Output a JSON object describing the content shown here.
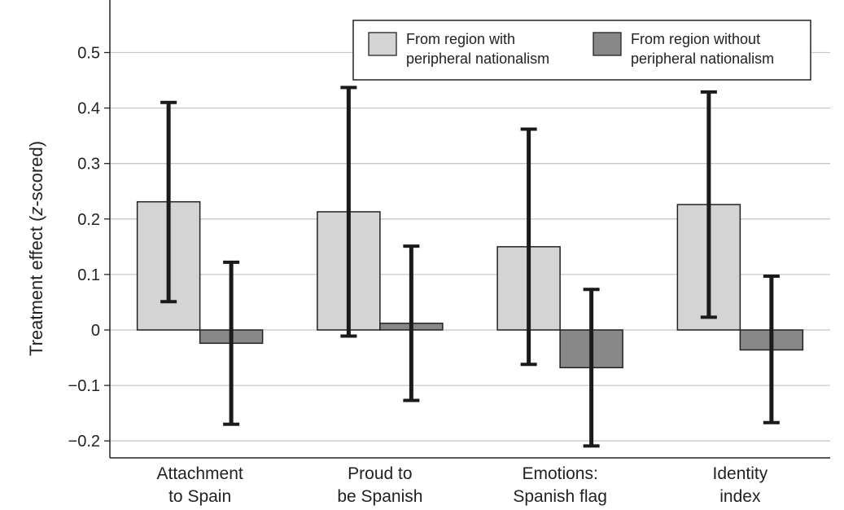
{
  "chart_data": {
    "type": "bar",
    "title": "",
    "xlabel": "",
    "ylabel": "Treatment effect (z-scored)",
    "ylabel_parts": [
      "Treatment effect (",
      "z",
      "-scored)"
    ],
    "ylim": [
      -0.23,
      0.56
    ],
    "yticks": [
      -0.2,
      -0.1,
      0,
      0.1,
      0.2,
      0.3,
      0.4,
      0.5
    ],
    "ytick_labels": [
      "−0.2",
      "−0.1",
      "0",
      "0.1",
      "0.2",
      "0.3",
      "0.4",
      "0.5"
    ],
    "grid": true,
    "legend_position": "top-right",
    "categories": [
      [
        "Attachment",
        "to Spain"
      ],
      [
        "Proud to",
        "be Spanish"
      ],
      [
        "Emotions:",
        "Spanish flag"
      ],
      [
        "Identity",
        "index"
      ]
    ],
    "series": [
      {
        "name": [
          "From region with",
          "peripheral nationalism"
        ],
        "color": "#d4d4d4",
        "values": [
          0.231,
          0.213,
          0.15,
          0.226
        ],
        "ci_low": [
          0.051,
          -0.011,
          -0.062,
          0.023
        ],
        "ci_high": [
          0.41,
          0.437,
          0.362,
          0.429
        ]
      },
      {
        "name": [
          "From region without",
          "peripheral nationalism"
        ],
        "color": "#888888",
        "values": [
          -0.024,
          0.012,
          -0.068,
          -0.036
        ],
        "ci_low": [
          -0.17,
          -0.127,
          -0.209,
          -0.167
        ],
        "ci_high": [
          0.122,
          0.151,
          0.073,
          0.097
        ]
      }
    ]
  }
}
